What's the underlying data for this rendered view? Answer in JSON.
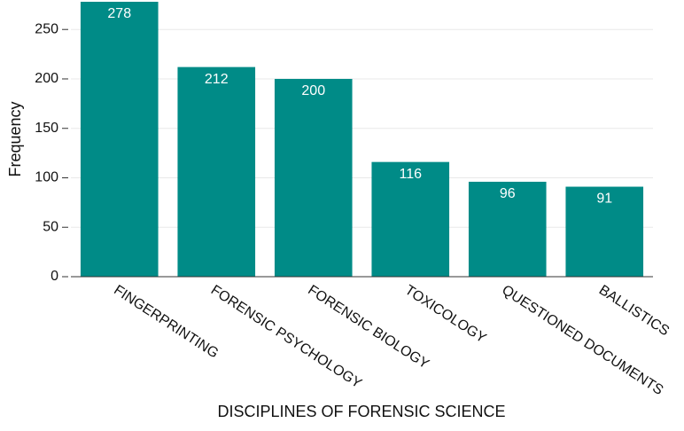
{
  "chart_data": {
    "type": "bar",
    "x_label": "DISCIPLINES OF FORENSIC SCIENCE",
    "y_label": "Frequency",
    "categories": [
      "FINGERPRINTING",
      "FORENSIC PSYCHOLOGY",
      "FORENSIC BIOLOGY",
      "TOXICOLOGY",
      "QUESTIONED DOCUMENTS",
      "BALLISTICS"
    ],
    "values": [
      278,
      212,
      200,
      116,
      96,
      91
    ],
    "color": "#008b87",
    "ylim": [
      0,
      278
    ],
    "yticks": [
      0,
      50,
      100,
      150,
      200,
      250
    ],
    "grid": true
  }
}
